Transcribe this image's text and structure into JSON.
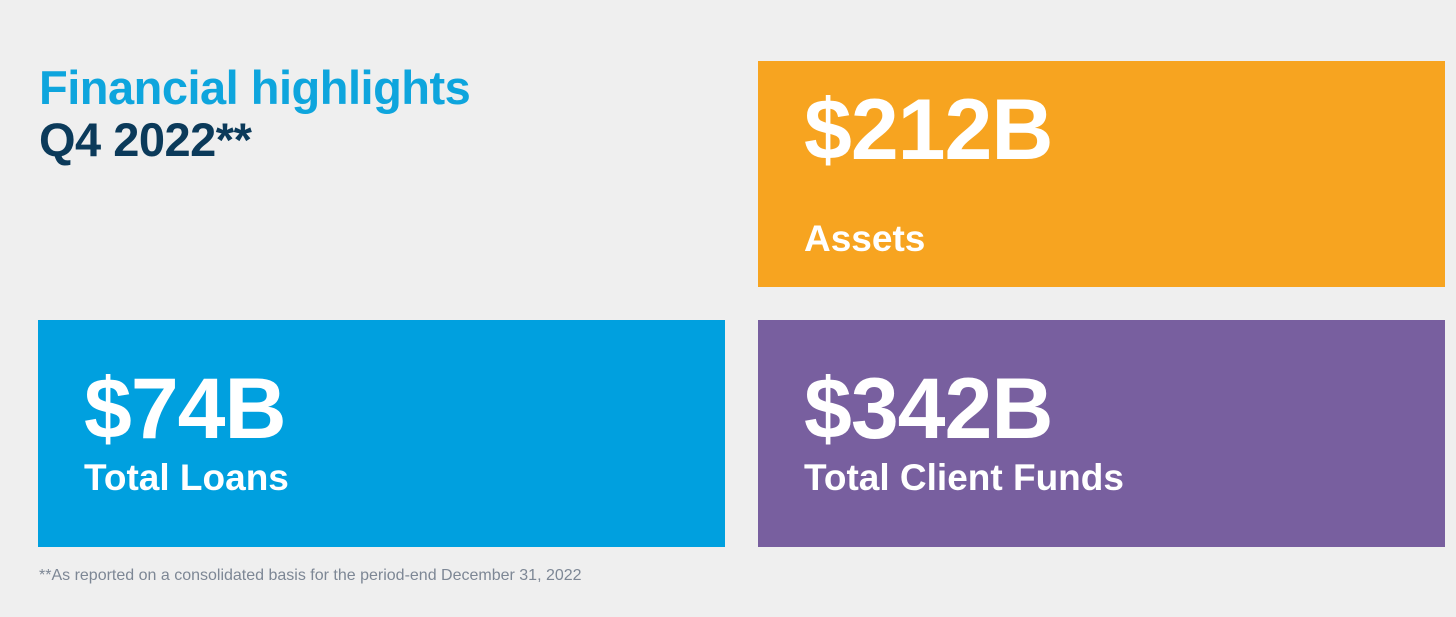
{
  "header": {
    "title": "Financial highlights",
    "subtitle": "Q4 2022**"
  },
  "cards": {
    "assets": {
      "value": "$212B",
      "label": "Assets"
    },
    "loans": {
      "value": "$74B",
      "label": "Total Loans"
    },
    "funds": {
      "value": "$342B",
      "label": "Total Client Funds"
    }
  },
  "footnote": "**As reported on a consolidated basis for the period-end December 31, 2022",
  "colors": {
    "background": "#efefef",
    "title": "#0ea5dd",
    "subtitle": "#0b3a5a",
    "assets": "#f7a420",
    "loans": "#00a0df",
    "funds": "#785f9f",
    "footnote": "#7d8795"
  }
}
